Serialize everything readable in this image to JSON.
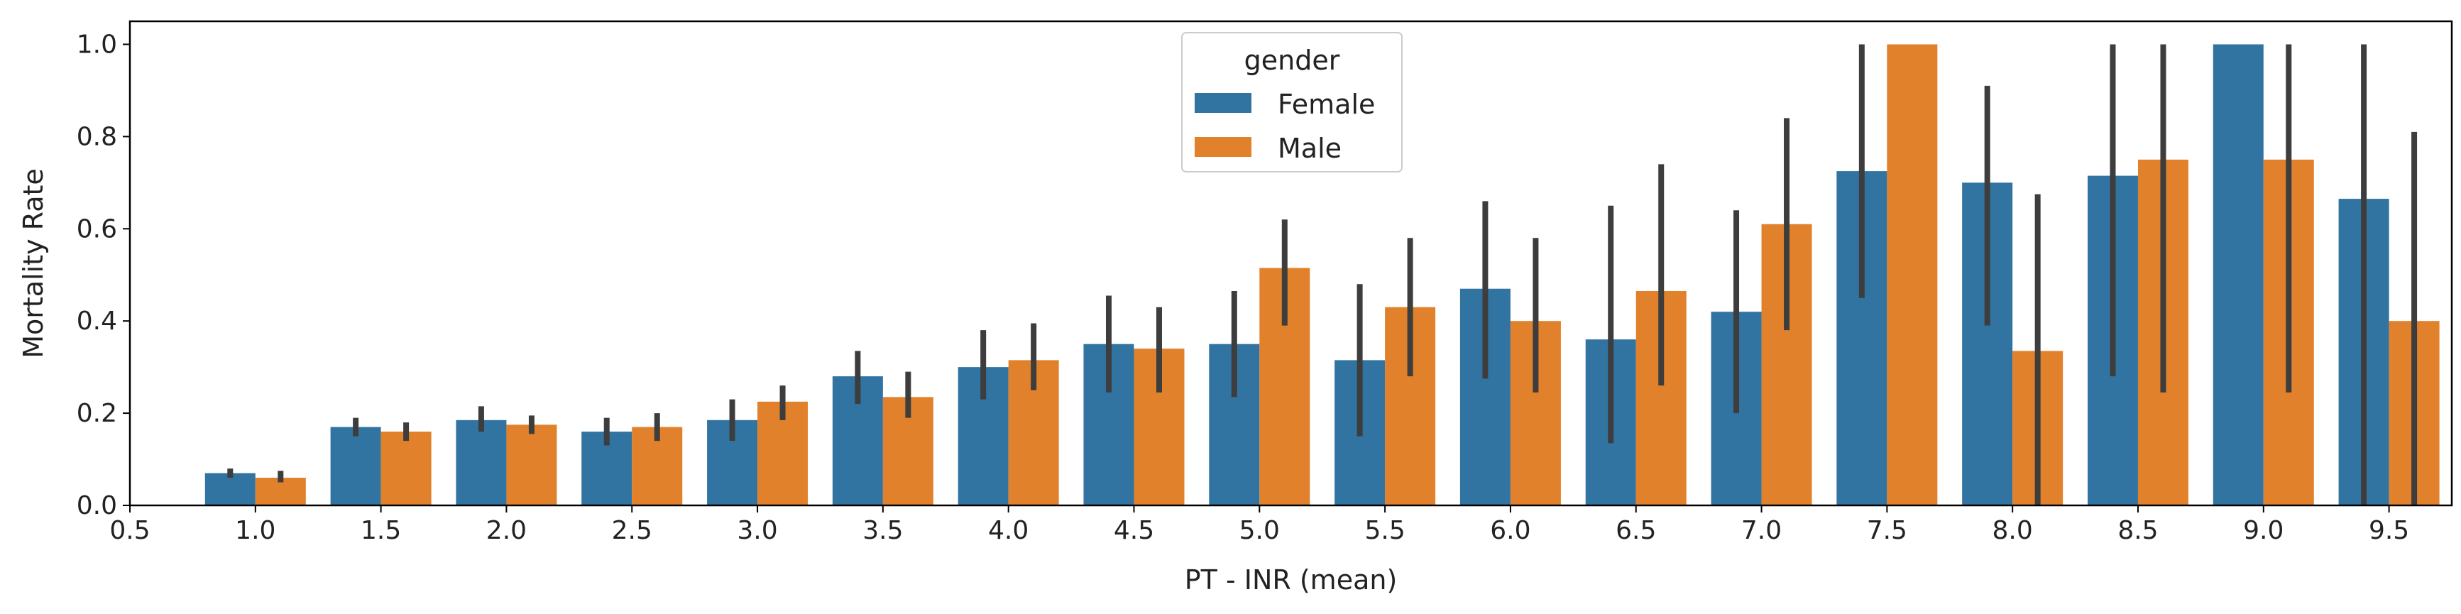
{
  "chart_data": {
    "type": "bar",
    "xlabel": "PT - INR (mean)",
    "ylabel": "Mortality Rate",
    "ylim": [
      0,
      1.05
    ],
    "x_ticks": [
      "0.5",
      "1.0",
      "1.5",
      "2.0",
      "2.5",
      "3.0",
      "3.5",
      "4.0",
      "4.5",
      "5.0",
      "5.5",
      "6.0",
      "6.5",
      "7.0",
      "7.5",
      "8.0",
      "8.5",
      "9.0",
      "9.5"
    ],
    "y_ticks": [
      "0.0",
      "0.2",
      "0.4",
      "0.6",
      "0.8",
      "1.0"
    ],
    "y_tick_values": [
      0,
      0.2,
      0.4,
      0.6,
      0.8,
      1.0
    ],
    "categories": [
      "1.0",
      "1.5",
      "2.0",
      "2.5",
      "3.0",
      "3.5",
      "4.0",
      "4.5",
      "5.0",
      "5.5",
      "6.0",
      "6.5",
      "7.0",
      "7.5",
      "8.0",
      "8.5",
      "9.0",
      "9.5"
    ],
    "legend": {
      "title": "gender",
      "position": "top-center"
    },
    "grid": false,
    "series": [
      {
        "name": "Female",
        "color": "#3274a1",
        "values": [
          0.07,
          0.17,
          0.185,
          0.16,
          0.185,
          0.28,
          0.3,
          0.35,
          0.35,
          0.315,
          0.47,
          0.36,
          0.42,
          0.725,
          0.7,
          0.715,
          1.0,
          0.665
        ],
        "ci_low": [
          0.06,
          0.15,
          0.16,
          0.13,
          0.14,
          0.22,
          0.23,
          0.245,
          0.235,
          0.15,
          0.275,
          0.135,
          0.2,
          0.45,
          0.39,
          0.28,
          1.0,
          0.0
        ],
        "ci_high": [
          0.08,
          0.19,
          0.215,
          0.19,
          0.23,
          0.335,
          0.38,
          0.455,
          0.465,
          0.48,
          0.66,
          0.65,
          0.64,
          1.0,
          0.91,
          1.0,
          1.0,
          1.0
        ]
      },
      {
        "name": "Male",
        "color": "#e1812c",
        "values": [
          0.06,
          0.16,
          0.175,
          0.17,
          0.225,
          0.235,
          0.315,
          0.34,
          0.515,
          0.43,
          0.4,
          0.465,
          0.61,
          1.0,
          0.335,
          0.75,
          0.75,
          0.4
        ],
        "ci_low": [
          0.05,
          0.14,
          0.155,
          0.14,
          0.185,
          0.19,
          0.25,
          0.245,
          0.39,
          0.28,
          0.245,
          0.26,
          0.38,
          1.0,
          0.0,
          0.245,
          0.245,
          0.0
        ],
        "ci_high": [
          0.075,
          0.18,
          0.195,
          0.2,
          0.26,
          0.29,
          0.395,
          0.43,
          0.62,
          0.58,
          0.58,
          0.74,
          0.84,
          1.0,
          0.675,
          1.0,
          1.0,
          0.81
        ]
      }
    ]
  }
}
